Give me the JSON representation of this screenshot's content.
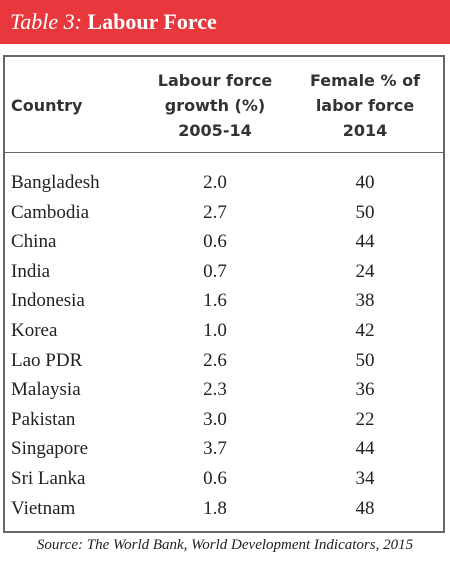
{
  "title": {
    "label": "Table 3:",
    "text": "Labour Force"
  },
  "table": {
    "header": [
      [
        "Country"
      ],
      [
        "Labour force",
        "growth (%)",
        "2005-14"
      ],
      [
        "Female % of",
        "labor force",
        "2014"
      ]
    ],
    "rows": [
      [
        "Bangladesh",
        "2.0",
        "40"
      ],
      [
        "Cambodia",
        "2.7",
        "50"
      ],
      [
        "China",
        "0.6",
        "44"
      ],
      [
        "India",
        "0.7",
        "24"
      ],
      [
        "Indonesia",
        "1.6",
        "38"
      ],
      [
        "Korea",
        "1.0",
        "42"
      ],
      [
        "Lao PDR",
        "2.6",
        "50"
      ],
      [
        "Malaysia",
        "2.3",
        "36"
      ],
      [
        "Pakistan",
        "3.0",
        "22"
      ],
      [
        "Singapore",
        "3.7",
        "44"
      ],
      [
        "Sri Lanka",
        "0.6",
        "34"
      ],
      [
        "Vietnam",
        "1.8",
        "48"
      ]
    ]
  },
  "source": "Source: The World Bank, World Development Indicators, 2015"
}
